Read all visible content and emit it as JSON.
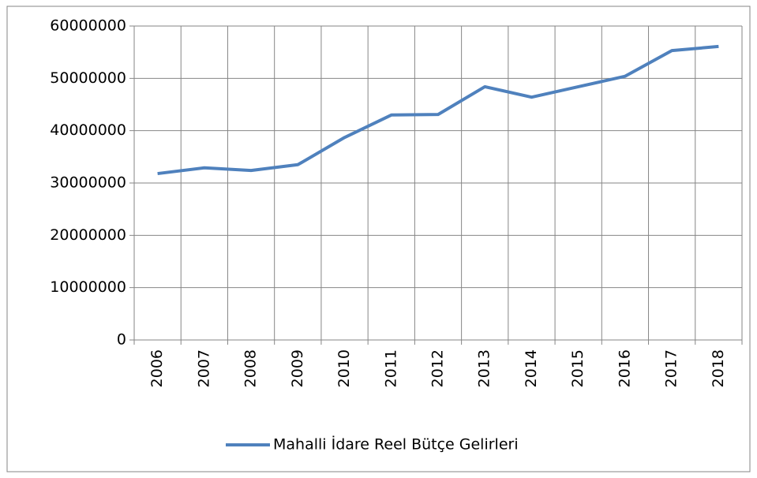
{
  "chart_data": {
    "type": "line",
    "categories": [
      "2006",
      "2007",
      "2008",
      "2009",
      "2010",
      "2011",
      "2012",
      "2013",
      "2014",
      "2015",
      "2016",
      "2017",
      "2018"
    ],
    "series": [
      {
        "name": "Mahalli İdare Reel Bütçe Gelirleri",
        "color": "#4f81bd",
        "values": [
          31800000,
          32900000,
          32400000,
          33500000,
          38700000,
          43000000,
          43100000,
          48400000,
          46400000,
          48400000,
          50400000,
          55300000,
          56100000
        ]
      }
    ],
    "ylim": [
      0,
      60000000
    ],
    "yticks": [
      0,
      10000000,
      20000000,
      30000000,
      40000000,
      50000000,
      60000000
    ],
    "grid": true,
    "legend": "bottom"
  }
}
